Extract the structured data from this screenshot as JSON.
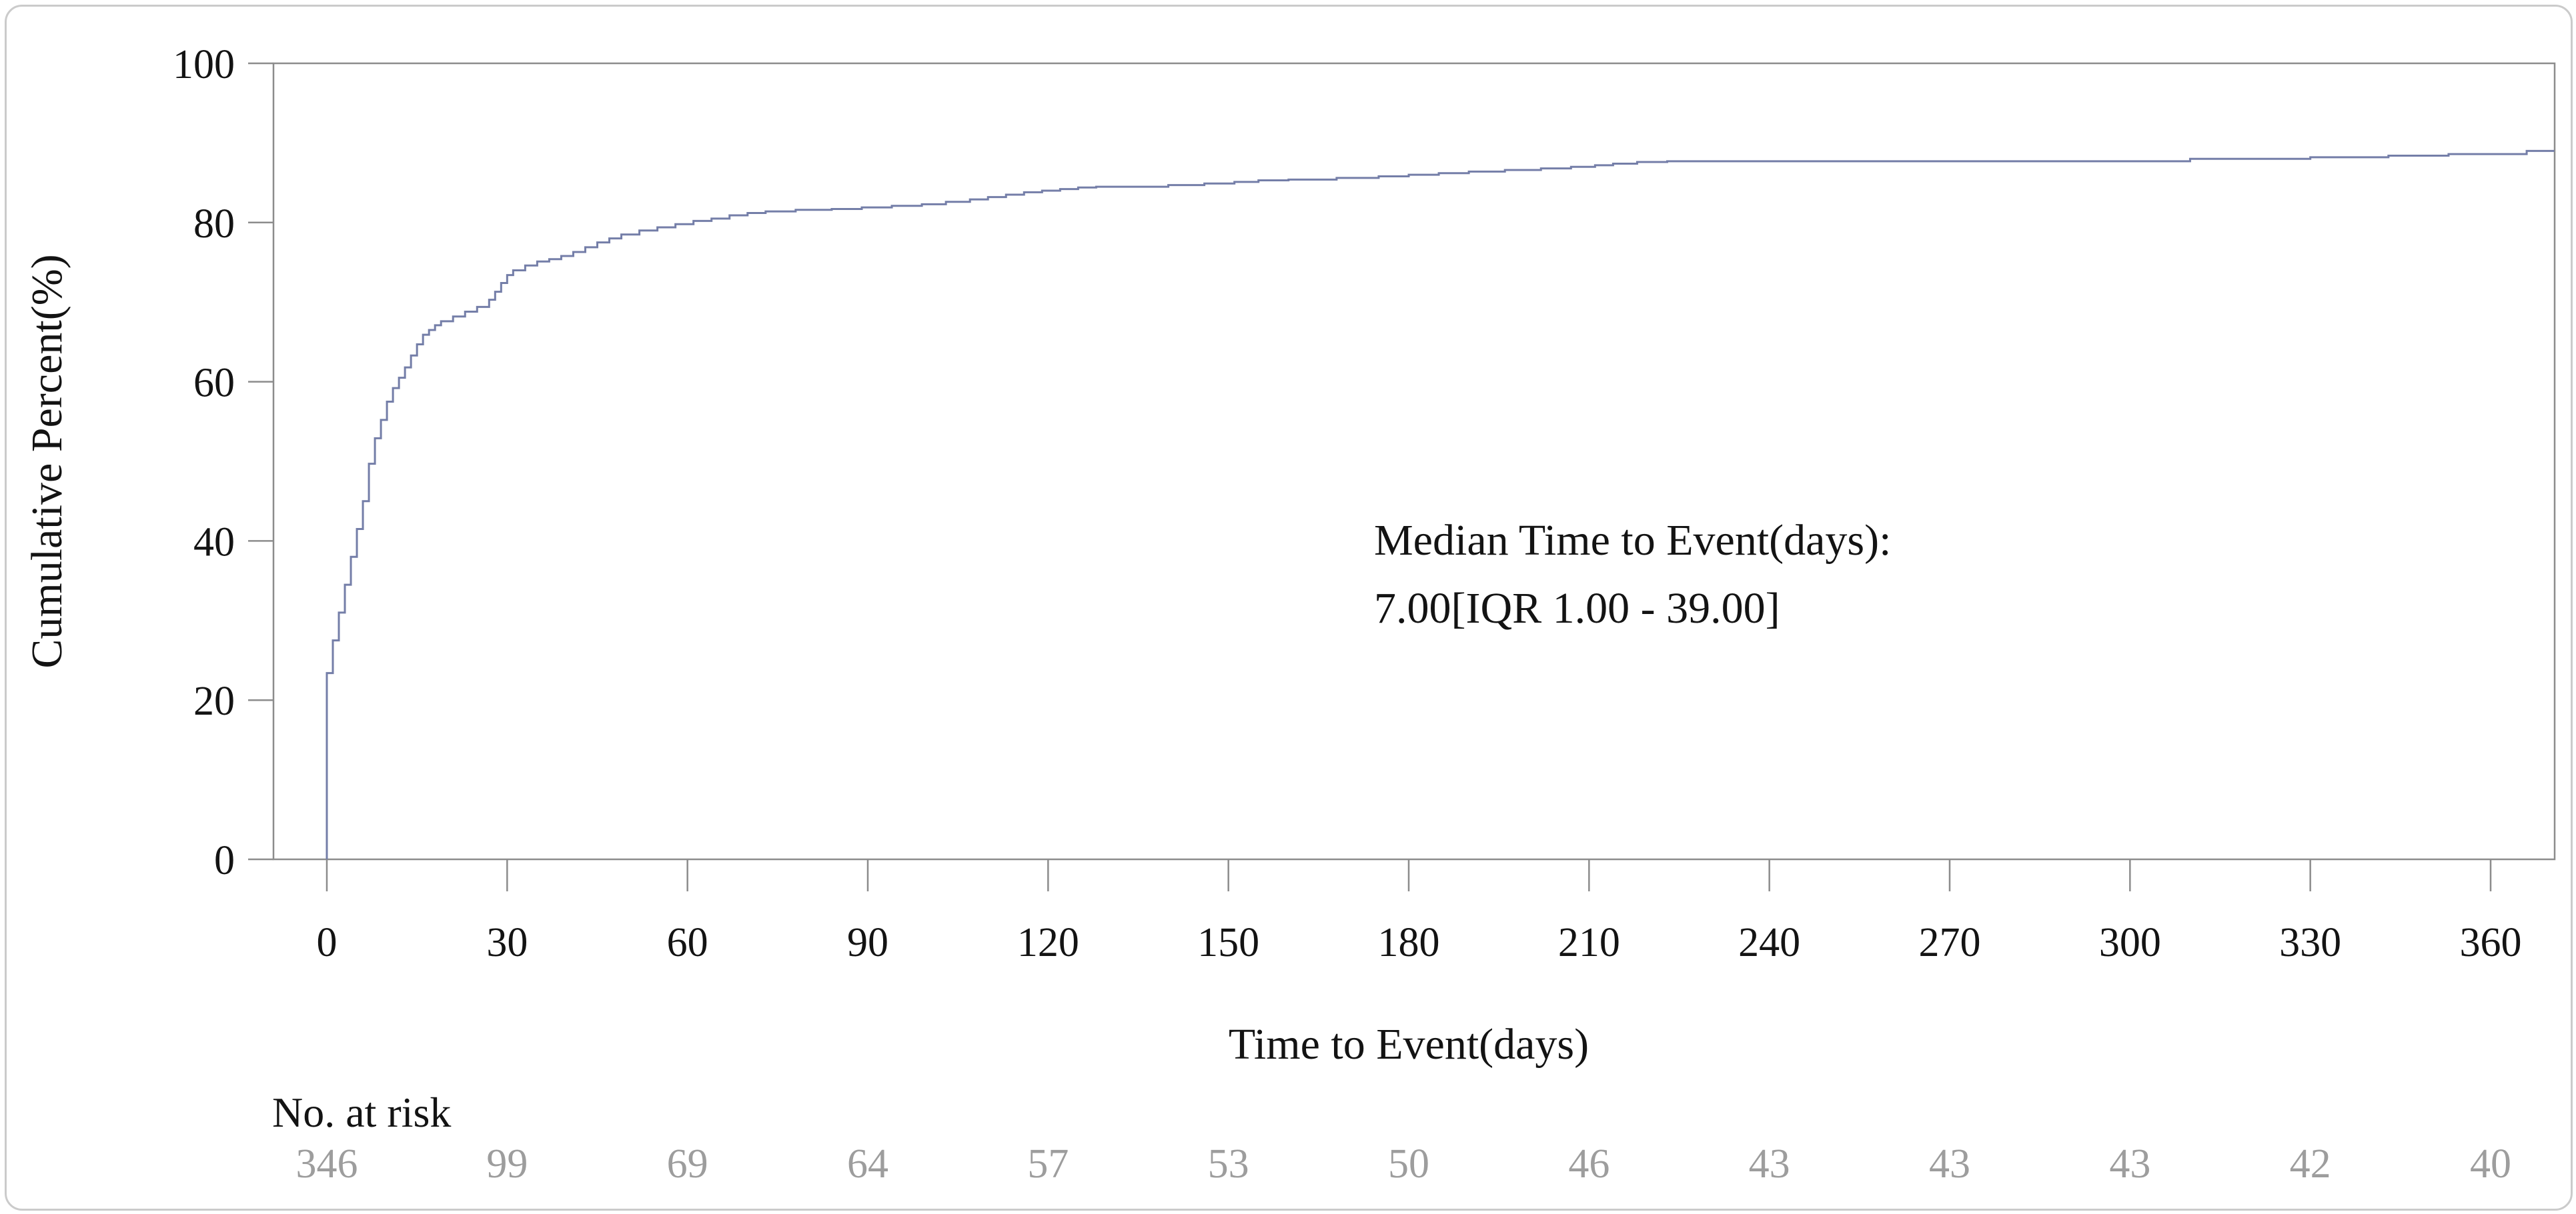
{
  "chart_data": {
    "type": "line",
    "subtype": "step-cumulative-incidence",
    "title": "",
    "xlabel": "Time to Event(days)",
    "ylabel": "Cumulative Percent(%)",
    "xlim": [
      0,
      370.6
    ],
    "ylim": [
      0,
      100
    ],
    "xticks": [
      0,
      30,
      60,
      90,
      120,
      150,
      180,
      210,
      240,
      270,
      300,
      330,
      360
    ],
    "yticks": [
      0,
      20,
      40,
      60,
      80,
      100
    ],
    "grid": "off",
    "legend": "none",
    "annotation": {
      "line1": "Median Time to Event(days):",
      "line2": "7.00[IQR 1.00 - 39.00]"
    },
    "series": [
      {
        "name": "cumulative-percent-curve",
        "start": [
          0,
          0
        ],
        "end_day": 370.6,
        "steps": [
          [
            0,
            23.4
          ],
          [
            1,
            27.5
          ],
          [
            2,
            31.0
          ],
          [
            3,
            34.5
          ],
          [
            4,
            38.0
          ],
          [
            5,
            41.5
          ],
          [
            6,
            45.0
          ],
          [
            7,
            49.7
          ],
          [
            8,
            52.9
          ],
          [
            9,
            55.2
          ],
          [
            10,
            57.5
          ],
          [
            11,
            59.2
          ],
          [
            12,
            60.5
          ],
          [
            13,
            61.8
          ],
          [
            14,
            63.3
          ],
          [
            15,
            64.7
          ],
          [
            16,
            65.9
          ],
          [
            17,
            66.5
          ],
          [
            18,
            67.1
          ],
          [
            19,
            67.6
          ],
          [
            21,
            68.2
          ],
          [
            23,
            68.8
          ],
          [
            25,
            69.4
          ],
          [
            27,
            70.3
          ],
          [
            28,
            71.3
          ],
          [
            29,
            72.4
          ],
          [
            30,
            73.4
          ],
          [
            31,
            74.0
          ],
          [
            33,
            74.6
          ],
          [
            35,
            75.1
          ],
          [
            37,
            75.4
          ],
          [
            39,
            75.8
          ],
          [
            41,
            76.3
          ],
          [
            43,
            76.9
          ],
          [
            45,
            77.5
          ],
          [
            47,
            78.0
          ],
          [
            49,
            78.5
          ],
          [
            52,
            79.0
          ],
          [
            55,
            79.4
          ],
          [
            58,
            79.8
          ],
          [
            61,
            80.2
          ],
          [
            64,
            80.5
          ],
          [
            67,
            80.9
          ],
          [
            70,
            81.2
          ],
          [
            73,
            81.4
          ],
          [
            78,
            81.6
          ],
          [
            84,
            81.7
          ],
          [
            89,
            81.9
          ],
          [
            94,
            82.1
          ],
          [
            99,
            82.3
          ],
          [
            103,
            82.6
          ],
          [
            107,
            82.9
          ],
          [
            110,
            83.2
          ],
          [
            113,
            83.5
          ],
          [
            116,
            83.8
          ],
          [
            119,
            84.0
          ],
          [
            122,
            84.2
          ],
          [
            125,
            84.4
          ],
          [
            128,
            84.5
          ],
          [
            140,
            84.7
          ],
          [
            146,
            84.9
          ],
          [
            151,
            85.1
          ],
          [
            155,
            85.3
          ],
          [
            160,
            85.4
          ],
          [
            168,
            85.6
          ],
          [
            175,
            85.8
          ],
          [
            180,
            86.0
          ],
          [
            185,
            86.2
          ],
          [
            190,
            86.4
          ],
          [
            196,
            86.6
          ],
          [
            202,
            86.8
          ],
          [
            207,
            87.0
          ],
          [
            211,
            87.2
          ],
          [
            214,
            87.4
          ],
          [
            218,
            87.6
          ],
          [
            223,
            87.7
          ],
          [
            310,
            88.0
          ],
          [
            330,
            88.2
          ],
          [
            343,
            88.4
          ],
          [
            353,
            88.6
          ],
          [
            366,
            89.0
          ]
        ]
      }
    ],
    "risk_table": {
      "label": "No. at risk",
      "times": [
        0,
        30,
        60,
        90,
        120,
        150,
        180,
        210,
        240,
        270,
        300,
        330,
        360
      ],
      "counts": [
        346,
        99,
        69,
        64,
        57,
        53,
        50,
        46,
        43,
        43,
        43,
        42,
        40
      ]
    },
    "colors": {
      "curve": "#747ea8",
      "axis": "#8c8c8c",
      "text": "#131313",
      "risk_numbers": "#9d9d9d",
      "figure_border": "#cbcbcb",
      "background": "#ffffff"
    }
  }
}
